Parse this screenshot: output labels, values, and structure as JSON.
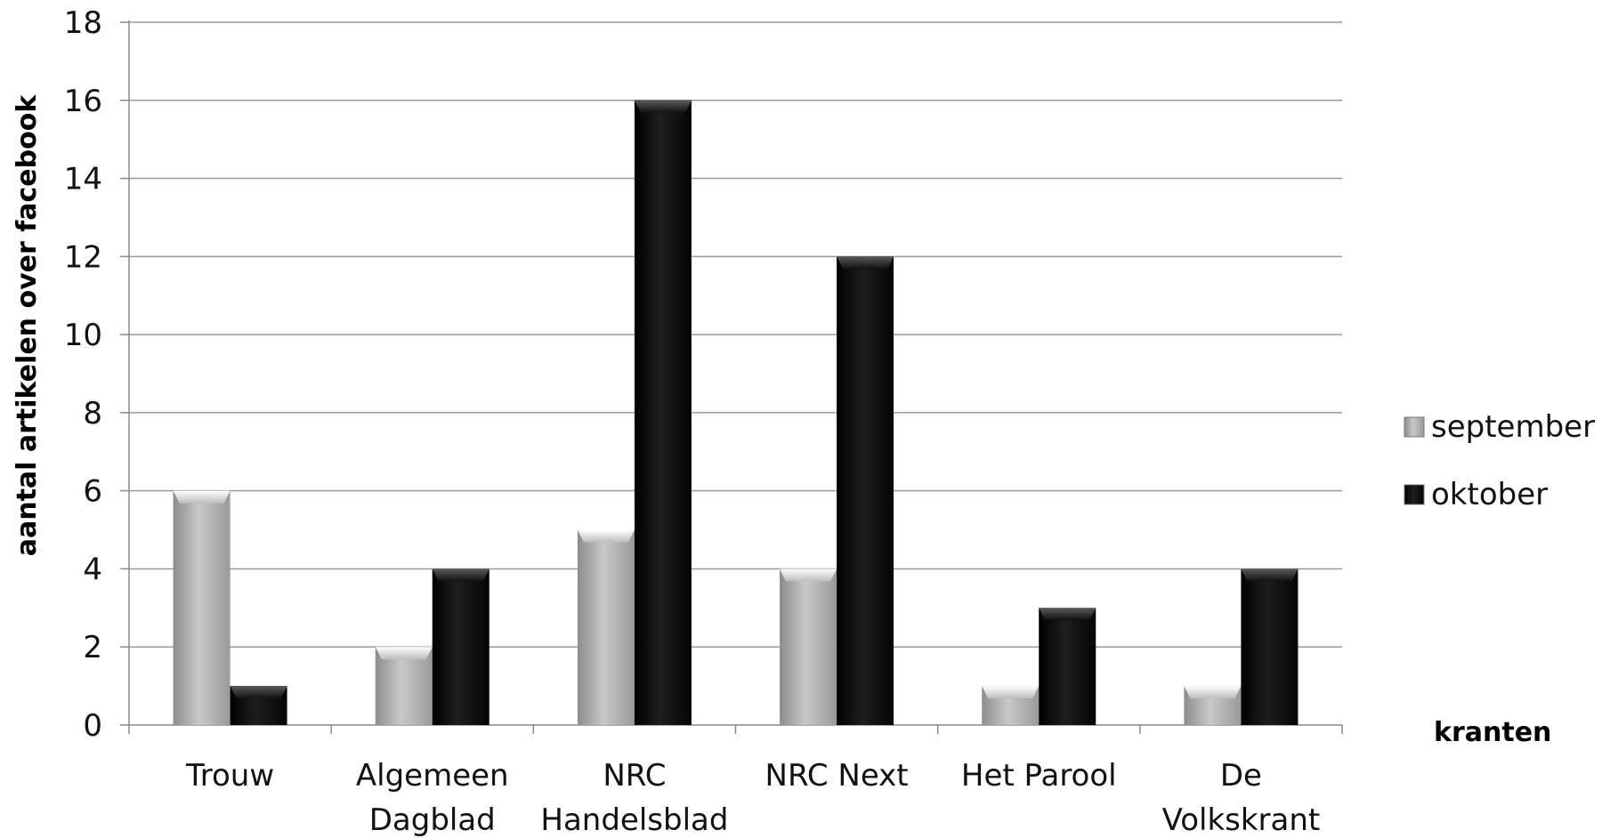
{
  "chart_data": {
    "type": "bar",
    "title": "",
    "xlabel": "kranten",
    "ylabel": "aantal artikelen over facebook",
    "ylim": [
      0,
      18
    ],
    "yticks": [
      0,
      2,
      4,
      6,
      8,
      10,
      12,
      14,
      16,
      18
    ],
    "grid": true,
    "legend_position": "right",
    "categories": [
      [
        "Trouw"
      ],
      [
        "Algemeen",
        "Dagblad"
      ],
      [
        "NRC",
        "Handelsblad"
      ],
      [
        "NRC Next"
      ],
      [
        "Het Parool"
      ],
      [
        "De",
        "Volkskrant"
      ]
    ],
    "series": [
      {
        "name": "september",
        "values": [
          6,
          2,
          5,
          4,
          1,
          1
        ],
        "color": "#b4b4b4"
      },
      {
        "name": "oktober",
        "values": [
          1,
          4,
          16,
          12,
          3,
          4
        ],
        "color": "#0d0d0d"
      }
    ]
  }
}
